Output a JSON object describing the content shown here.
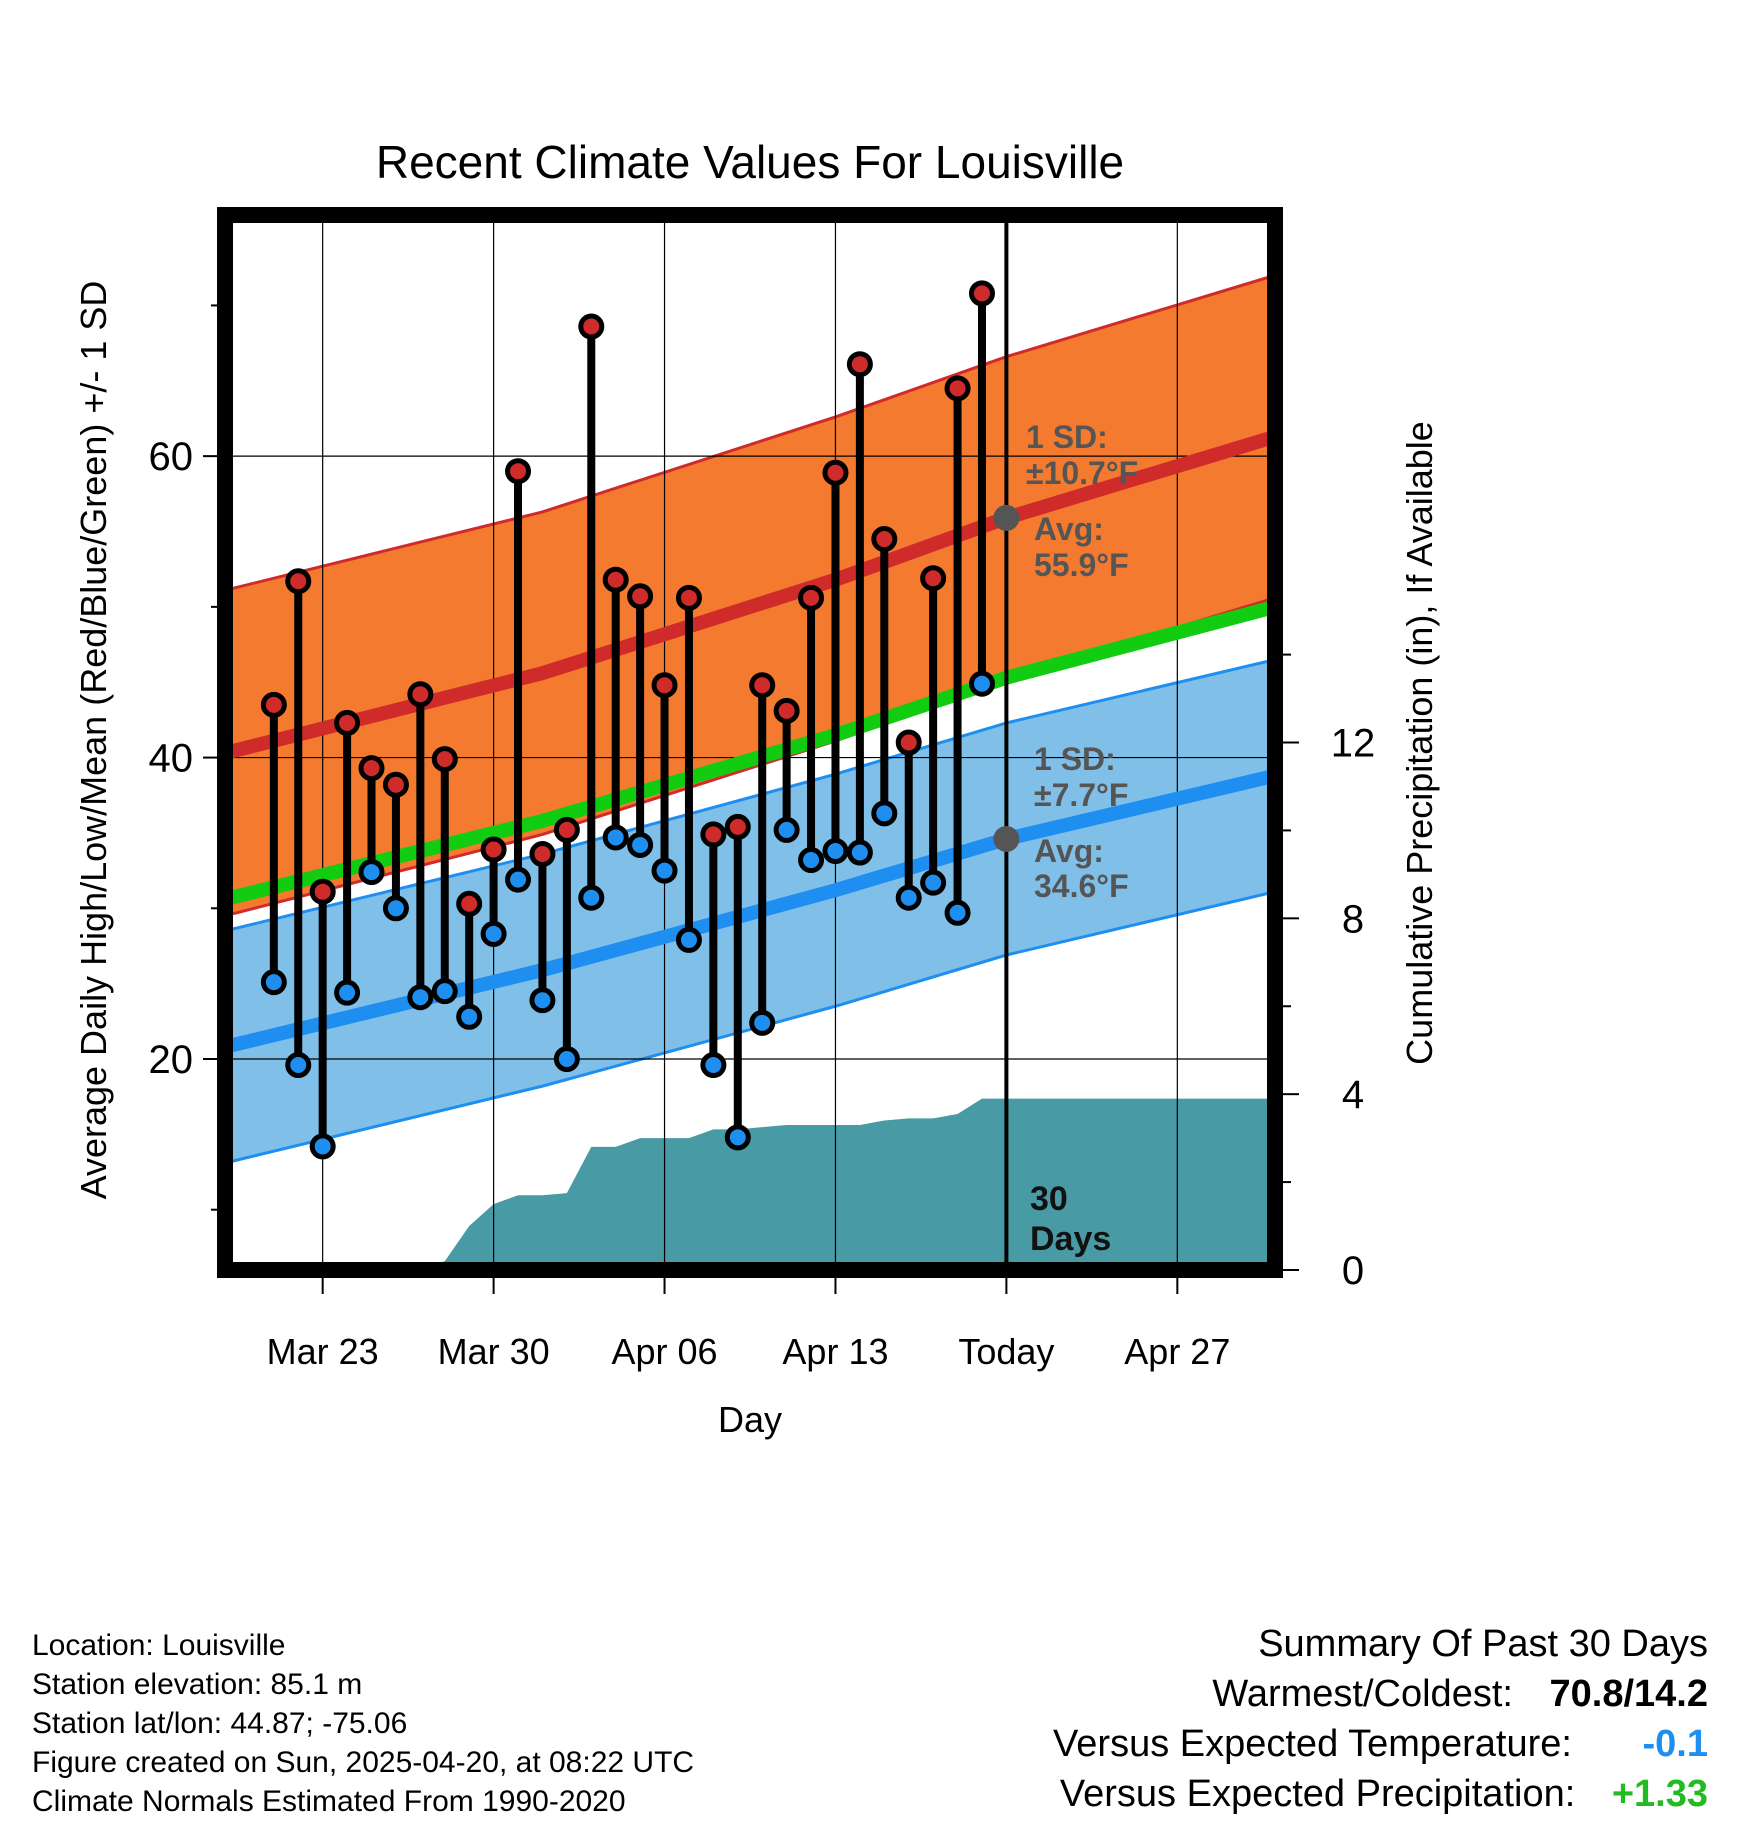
{
  "chart_data": {
    "type": "line",
    "title": "Recent Climate Values For Louisville",
    "xlabel": "Day",
    "ylabel": "Average Daily High/Low/Mean (Red/Blue/Green) +/- 1 SD",
    "y2label": "Cumulative Precipitation (in), If Available",
    "ylim": [
      6,
      76
    ],
    "y_ticks": [
      "20",
      "40",
      "60"
    ],
    "y2lim": [
      0,
      24
    ],
    "y2_ticks": [
      "0",
      "4",
      "8",
      "12"
    ],
    "x_tick_labels": [
      "Mar 23",
      "Mar 30",
      "Apr 06",
      "Apr 13",
      "Today",
      "Apr 27"
    ],
    "x_ticks_date": [
      "2025-03-23",
      "2025-03-30",
      "2025-04-06",
      "2025-04-13",
      "2025-04-20",
      "2025-04-27"
    ],
    "xlim_date": [
      "2025-03-19",
      "2025-05-01"
    ],
    "today_date": "2025-04-20",
    "grid": true,
    "normal_high": {
      "dates": [
        "2025-03-19",
        "2025-04-01",
        "2025-04-13",
        "2025-04-20",
        "2025-05-01"
      ],
      "mean": [
        40.3,
        45.6,
        51.8,
        55.9,
        61.3
      ],
      "upper": [
        51.1,
        56.3,
        62.6,
        66.6,
        72.0
      ],
      "lower": [
        29.5,
        34.9,
        41.1,
        45.2,
        50.6
      ]
    },
    "normal_low": {
      "dates": [
        "2025-03-19",
        "2025-04-01",
        "2025-04-13",
        "2025-04-20",
        "2025-05-01"
      ],
      "mean": [
        20.8,
        25.9,
        31.2,
        34.6,
        38.8
      ],
      "upper": [
        28.5,
        33.6,
        38.9,
        42.3,
        46.5
      ],
      "lower": [
        13.1,
        18.2,
        23.5,
        26.9,
        31.1
      ]
    },
    "normal_mean": {
      "dates": [
        "2025-03-19",
        "2025-04-01",
        "2025-04-13",
        "2025-04-20",
        "2025-05-01"
      ],
      "values": [
        30.6,
        35.8,
        41.5,
        45.3,
        50.0
      ]
    },
    "daily_dates": [
      "2025-03-21",
      "2025-03-22",
      "2025-03-23",
      "2025-03-24",
      "2025-03-25",
      "2025-03-26",
      "2025-03-27",
      "2025-03-28",
      "2025-03-29",
      "2025-03-30",
      "2025-03-31",
      "2025-04-01",
      "2025-04-02",
      "2025-04-03",
      "2025-04-04",
      "2025-04-05",
      "2025-04-06",
      "2025-04-07",
      "2025-04-08",
      "2025-04-09",
      "2025-04-10",
      "2025-04-11",
      "2025-04-12",
      "2025-04-13",
      "2025-04-14",
      "2025-04-15",
      "2025-04-16",
      "2025-04-17",
      "2025-04-18",
      "2025-04-19"
    ],
    "series": [
      {
        "name": "High",
        "values": [
          43.5,
          51.7,
          31.1,
          42.3,
          39.3,
          38.2,
          44.2,
          39.9,
          30.3,
          33.9,
          59.0,
          33.6,
          35.2,
          68.6,
          51.8,
          50.7,
          44.8,
          50.6,
          34.9,
          35.4,
          44.8,
          43.1,
          50.6,
          58.9,
          66.1,
          54.5,
          41.0,
          51.9,
          64.5,
          70.8
        ]
      },
      {
        "name": "Low",
        "values": [
          25.1,
          19.6,
          14.2,
          24.4,
          32.4,
          30.0,
          24.1,
          24.5,
          22.8,
          28.3,
          31.9,
          23.9,
          20.0,
          30.7,
          34.7,
          34.2,
          32.5,
          27.9,
          19.6,
          14.8,
          22.4,
          35.2,
          33.2,
          33.8,
          33.7,
          36.3,
          30.7,
          31.7,
          29.7,
          44.9
        ]
      }
    ],
    "precip_cumulative": {
      "dates": [
        "2025-03-19",
        "2025-03-27",
        "2025-03-28",
        "2025-03-29",
        "2025-03-30",
        "2025-03-31",
        "2025-04-01",
        "2025-04-02",
        "2025-04-03",
        "2025-04-04",
        "2025-04-05",
        "2025-04-06",
        "2025-04-07",
        "2025-04-08",
        "2025-04-09",
        "2025-04-10",
        "2025-04-11",
        "2025-04-12",
        "2025-04-13",
        "2025-04-14",
        "2025-04-15",
        "2025-04-16",
        "2025-04-17",
        "2025-04-18",
        "2025-04-19",
        "2025-05-01"
      ],
      "values": [
        0,
        0.05,
        0.2,
        1.0,
        1.5,
        1.7,
        1.7,
        1.75,
        2.8,
        2.8,
        3.0,
        3.0,
        3.0,
        3.2,
        3.2,
        3.25,
        3.3,
        3.3,
        3.3,
        3.3,
        3.4,
        3.45,
        3.45,
        3.55,
        3.9,
        3.9
      ]
    },
    "annotations": {
      "high_sd_label": "1 SD:",
      "high_sd_value": "±10.7°F",
      "high_avg_label": "Avg:",
      "high_avg_value": "55.9°F",
      "low_sd_label": "1 SD:",
      "low_sd_value": "±7.7°F",
      "low_avg_label": "Avg:",
      "low_avg_value": "34.6°F",
      "days_line1": "30",
      "days_line2": "Days"
    },
    "colors": {
      "high_band": "#f47a30",
      "high_line": "#d02b2b",
      "low_band": "#80c0e8",
      "low_line": "#1e8ff0",
      "mean_line": "#11cc11",
      "precip": "#489aa4",
      "annotation": "#555555"
    }
  },
  "footer": {
    "location": "Location: Louisville",
    "elevation": "Station elevation: 85.1 m",
    "latlon": "Station lat/lon: 44.87; -75.06",
    "created": "Figure created on Sun, 2025-04-20, at 08:22 UTC",
    "normals": "Climate Normals Estimated From 1990-2020"
  },
  "summary": {
    "title": "Summary Of Past 30 Days",
    "warm_cold_label": "Warmest/Coldest:",
    "warm_cold_value": "70.8/14.2",
    "temp_label": "Versus Expected Temperature:",
    "temp_value": "-0.1",
    "temp_color": "#1e8ff0",
    "precip_label": "Versus Expected Precipitation:",
    "precip_value": "+1.33",
    "precip_color": "#22bb22"
  }
}
